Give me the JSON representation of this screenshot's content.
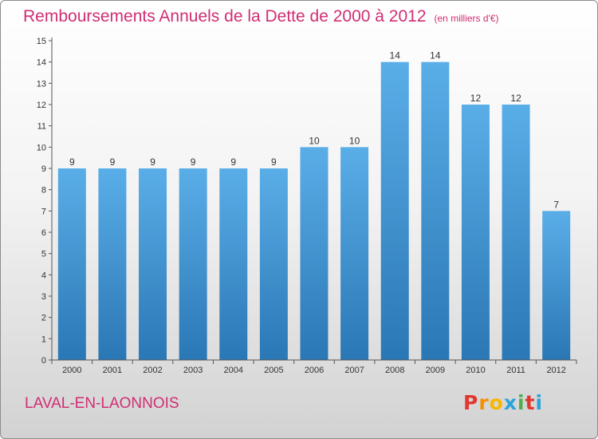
{
  "title": "Remboursements Annuels de la Dette de 2000 à 2012",
  "unit_note": "(en milliers d'€)",
  "city": "LAVAL-EN-LAONNOIS",
  "logo": {
    "letters": [
      "P",
      "r",
      "o",
      "x",
      "i",
      "t",
      "i"
    ],
    "colors": [
      "#e2372f",
      "#f39200",
      "#f6b800",
      "#2aa3d9",
      "#4cae4c",
      "#e2372f",
      "#2aa3d9"
    ]
  },
  "colors": {
    "bar_light": "#5aaee8",
    "bar_dark": "#2a77b5",
    "title": "#d02e73"
  },
  "chart_data": {
    "type": "bar",
    "title": "Remboursements Annuels de la Dette de 2000 à 2012",
    "categories": [
      "2000",
      "2001",
      "2002",
      "2003",
      "2004",
      "2005",
      "2006",
      "2007",
      "2008",
      "2009",
      "2010",
      "2011",
      "2012"
    ],
    "values": [
      9,
      9,
      9,
      9,
      9,
      9,
      10,
      10,
      14,
      14,
      12,
      12,
      7
    ],
    "ylim": [
      0,
      15
    ],
    "yticks": [
      0,
      1,
      2,
      3,
      4,
      5,
      6,
      7,
      8,
      9,
      10,
      11,
      12,
      13,
      14,
      15
    ],
    "grid": false,
    "xlabel": "",
    "ylabel": ""
  }
}
